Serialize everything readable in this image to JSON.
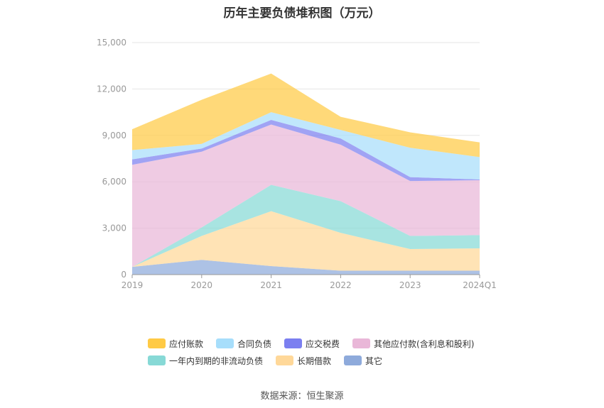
{
  "chart_data": {
    "type": "area",
    "stacked": true,
    "title": "历年主要负债堆积图（万元）",
    "categories": [
      "2019",
      "2020",
      "2021",
      "2022",
      "2023",
      "2024Q1"
    ],
    "ylim": [
      0,
      15000
    ],
    "yticks": [
      "0",
      "3,000",
      "6,000",
      "9,000",
      "12,000",
      "15,000"
    ],
    "grid": true,
    "legend_position": "bottom",
    "series": [
      {
        "name": "其它",
        "color": "#8eaadb",
        "values": [
          500,
          950,
          550,
          250,
          250,
          250
        ]
      },
      {
        "name": "长期借款",
        "color": "#ffd899",
        "values": [
          0,
          1550,
          3550,
          2450,
          1400,
          1450
        ]
      },
      {
        "name": "一年内到期的非流动负债",
        "color": "#87d9d6",
        "values": [
          0,
          550,
          1700,
          2050,
          850,
          850
        ]
      },
      {
        "name": "其他应付款(含利息和股利)",
        "color": "#e9b7d8",
        "values": [
          6600,
          4900,
          3900,
          3650,
          3550,
          3550
        ]
      },
      {
        "name": "应交税费",
        "color": "#7b7ff0",
        "values": [
          350,
          200,
          300,
          400,
          250,
          50
        ]
      },
      {
        "name": "合同负债",
        "color": "#a7defb",
        "values": [
          600,
          300,
          500,
          550,
          1900,
          1450
        ]
      },
      {
        "name": "应付账款",
        "color": "#ffca45",
        "values": [
          1350,
          2850,
          2500,
          850,
          1000,
          950
        ]
      }
    ]
  },
  "legend": {
    "row1": [
      "应付账款",
      "合同负债",
      "应交税费",
      "其他应付款(含利息和股利)"
    ],
    "row2": [
      "一年内到期的非流动负债",
      "长期借款",
      "其它"
    ]
  },
  "source": "数据来源：恒生聚源"
}
